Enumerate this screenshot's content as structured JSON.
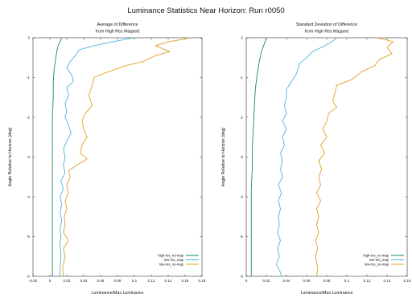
{
  "title": "Luminance Statistics Near Horizon: Run r0050",
  "colors": {
    "high-res_no-map": "#1a8a6a",
    "low-res_map": "#4fb3d9",
    "low-res_no-map": "#e0a020"
  },
  "chart_data": [
    {
      "type": "line",
      "title_lines": [
        "Average of Difference",
        "from High Res Mapped"
      ],
      "xlabel": "Luminance/Max Luminance",
      "ylabel": "Angle Relative to Horizon (deg)",
      "xlim": [
        -0.02,
        0.18
      ],
      "ylim": [
        -6,
        0
      ],
      "xticks": [
        -0.02,
        0,
        0.02,
        0.04,
        0.06,
        0.08,
        0.1,
        0.12,
        0.14,
        0.16,
        0.18
      ],
      "xtick_labels": [
        "-0.02",
        "0",
        "0.02",
        "0.04",
        "0.06",
        "0.08",
        "0.1",
        "0.12",
        "0.14",
        "0.16",
        "0.18"
      ],
      "yticks": [
        0,
        -1,
        -2,
        -3,
        -4,
        -5,
        -6
      ],
      "ytick_labels": [
        "0",
        "-1",
        "-2",
        "-3",
        "-4",
        "-5",
        "-6"
      ],
      "legend": "bottom-right",
      "series": [
        {
          "name": "high-res_no-map",
          "color": "#1a8a6a",
          "points": [
            [
              0.014,
              0
            ],
            [
              0.012,
              -0.1
            ],
            [
              0.009,
              -0.25
            ],
            [
              0.007,
              -0.5
            ],
            [
              0.005,
              -0.8
            ],
            [
              0.004,
              -1.1
            ],
            [
              0.004,
              -1.5
            ],
            [
              0.003,
              -2.0
            ],
            [
              0.003,
              -2.5
            ],
            [
              0.003,
              -3.0
            ],
            [
              0.003,
              -3.5
            ],
            [
              0.003,
              -4.0
            ],
            [
              0.003,
              -4.5
            ],
            [
              0.003,
              -5.0
            ],
            [
              0.003,
              -5.5
            ],
            [
              0.003,
              -6.0
            ]
          ]
        },
        {
          "name": "low-res_map",
          "color": "#4fb3d9",
          "points": [
            [
              0.099,
              0
            ],
            [
              0.075,
              -0.1
            ],
            [
              0.052,
              -0.2
            ],
            [
              0.035,
              -0.3
            ],
            [
              0.03,
              -0.45
            ],
            [
              0.024,
              -0.6
            ],
            [
              0.02,
              -0.75
            ],
            [
              0.026,
              -0.95
            ],
            [
              0.028,
              -1.1
            ],
            [
              0.02,
              -1.25
            ],
            [
              0.022,
              -1.45
            ],
            [
              0.018,
              -1.65
            ],
            [
              0.02,
              -1.85
            ],
            [
              0.018,
              -2.0
            ],
            [
              0.022,
              -2.2
            ],
            [
              0.025,
              -2.4
            ],
            [
              0.02,
              -2.6
            ],
            [
              0.016,
              -2.8
            ],
            [
              0.018,
              -3.0
            ],
            [
              0.016,
              -3.2
            ],
            [
              0.018,
              -3.4
            ],
            [
              0.013,
              -3.6
            ],
            [
              0.016,
              -3.8
            ],
            [
              0.012,
              -4.0
            ],
            [
              0.014,
              -4.2
            ],
            [
              0.012,
              -4.4
            ],
            [
              0.014,
              -4.6
            ],
            [
              0.012,
              -4.8
            ],
            [
              0.013,
              -5.0
            ],
            [
              0.012,
              -5.2
            ],
            [
              0.013,
              -5.5
            ],
            [
              0.012,
              -5.8
            ],
            [
              0.012,
              -6.0
            ]
          ]
        },
        {
          "name": "low-res_no-map",
          "color": "#e0a020",
          "points": [
            [
              0.165,
              0
            ],
            [
              0.155,
              -0.05
            ],
            [
              0.14,
              -0.1
            ],
            [
              0.125,
              -0.2
            ],
            [
              0.142,
              -0.35
            ],
            [
              0.125,
              -0.45
            ],
            [
              0.11,
              -0.6
            ],
            [
              0.09,
              -0.7
            ],
            [
              0.07,
              -0.85
            ],
            [
              0.052,
              -1.0
            ],
            [
              0.05,
              -1.2
            ],
            [
              0.046,
              -1.45
            ],
            [
              0.05,
              -1.7
            ],
            [
              0.042,
              -1.9
            ],
            [
              0.038,
              -2.1
            ],
            [
              0.04,
              -2.3
            ],
            [
              0.044,
              -2.5
            ],
            [
              0.038,
              -2.7
            ],
            [
              0.036,
              -2.9
            ],
            [
              0.044,
              -3.05
            ],
            [
              0.032,
              -3.2
            ],
            [
              0.022,
              -3.35
            ],
            [
              0.024,
              -3.5
            ],
            [
              0.02,
              -3.7
            ],
            [
              0.022,
              -3.9
            ],
            [
              0.018,
              -4.1
            ],
            [
              0.02,
              -4.3
            ],
            [
              0.017,
              -4.5
            ],
            [
              0.018,
              -4.7
            ],
            [
              0.016,
              -4.9
            ],
            [
              0.022,
              -5.1
            ],
            [
              0.016,
              -5.3
            ],
            [
              0.018,
              -5.5
            ],
            [
              0.015,
              -5.8
            ],
            [
              0.016,
              -6.0
            ]
          ]
        }
      ]
    },
    {
      "type": "line",
      "title_lines": [
        "Standard Deviation of Difference",
        "from High Res Mapped"
      ],
      "xlabel": "Luminance/Max Luminance",
      "ylabel": "Angle Relative to Horizon (deg)",
      "xlim": [
        0,
        0.16
      ],
      "ylim": [
        -6,
        0
      ],
      "xticks": [
        0,
        0.02,
        0.04,
        0.06,
        0.08,
        0.1,
        0.12,
        0.14,
        0.16
      ],
      "xtick_labels": [
        "0",
        "0.02",
        "0.04",
        "0.06",
        "0.08",
        "0.1",
        "0.12",
        "0.14",
        "0.16"
      ],
      "yticks": [
        0,
        -1,
        -2,
        -3,
        -4,
        -5,
        -6
      ],
      "ytick_labels": [
        "0",
        "-1",
        "-2",
        "-3",
        "-4",
        "-5",
        "-6"
      ],
      "legend": "bottom-right",
      "series": [
        {
          "name": "high-res_no-map",
          "color": "#1a8a6a",
          "points": [
            [
              0.02,
              0
            ],
            [
              0.018,
              -0.15
            ],
            [
              0.015,
              -0.35
            ],
            [
              0.013,
              -0.6
            ],
            [
              0.011,
              -0.9
            ],
            [
              0.009,
              -1.3
            ],
            [
              0.008,
              -1.8
            ],
            [
              0.007,
              -2.3
            ],
            [
              0.006,
              -2.8
            ],
            [
              0.006,
              -3.3
            ],
            [
              0.005,
              -3.8
            ],
            [
              0.005,
              -4.3
            ],
            [
              0.005,
              -4.8
            ],
            [
              0.005,
              -5.3
            ],
            [
              0.005,
              -5.8
            ],
            [
              0.005,
              -6.0
            ]
          ]
        },
        {
          "name": "low-res_map",
          "color": "#4fb3d9",
          "points": [
            [
              0.09,
              0
            ],
            [
              0.085,
              -0.1
            ],
            [
              0.078,
              -0.2
            ],
            [
              0.066,
              -0.35
            ],
            [
              0.06,
              -0.5
            ],
            [
              0.053,
              -0.65
            ],
            [
              0.05,
              -0.9
            ],
            [
              0.045,
              -1.1
            ],
            [
              0.04,
              -1.3
            ],
            [
              0.04,
              -1.5
            ],
            [
              0.038,
              -1.7
            ],
            [
              0.04,
              -1.9
            ],
            [
              0.036,
              -2.1
            ],
            [
              0.04,
              -2.3
            ],
            [
              0.036,
              -2.5
            ],
            [
              0.038,
              -2.7
            ],
            [
              0.034,
              -2.9
            ],
            [
              0.036,
              -3.1
            ],
            [
              0.034,
              -3.3
            ],
            [
              0.036,
              -3.5
            ],
            [
              0.032,
              -3.7
            ],
            [
              0.035,
              -3.9
            ],
            [
              0.032,
              -4.1
            ],
            [
              0.034,
              -4.3
            ],
            [
              0.032,
              -4.5
            ],
            [
              0.033,
              -4.7
            ],
            [
              0.031,
              -4.9
            ],
            [
              0.034,
              -5.1
            ],
            [
              0.031,
              -5.3
            ],
            [
              0.033,
              -5.5
            ],
            [
              0.03,
              -5.7
            ],
            [
              0.034,
              -5.9
            ],
            [
              0.035,
              -6.0
            ]
          ]
        },
        {
          "name": "low-res_no-map",
          "color": "#e0a020",
          "points": [
            [
              0.13,
              0
            ],
            [
              0.146,
              -0.1
            ],
            [
              0.14,
              -0.25
            ],
            [
              0.145,
              -0.4
            ],
            [
              0.132,
              -0.55
            ],
            [
              0.128,
              -0.7
            ],
            [
              0.115,
              -0.85
            ],
            [
              0.105,
              -1.05
            ],
            [
              0.09,
              -1.2
            ],
            [
              0.088,
              -1.4
            ],
            [
              0.086,
              -1.6
            ],
            [
              0.09,
              -1.75
            ],
            [
              0.082,
              -1.9
            ],
            [
              0.08,
              -2.1
            ],
            [
              0.076,
              -2.3
            ],
            [
              0.08,
              -2.5
            ],
            [
              0.074,
              -2.7
            ],
            [
              0.078,
              -2.9
            ],
            [
              0.072,
              -3.1
            ],
            [
              0.075,
              -3.3
            ],
            [
              0.072,
              -3.5
            ],
            [
              0.074,
              -3.7
            ],
            [
              0.07,
              -3.9
            ],
            [
              0.074,
              -4.1
            ],
            [
              0.07,
              -4.3
            ],
            [
              0.072,
              -4.5
            ],
            [
              0.07,
              -4.7
            ],
            [
              0.072,
              -4.9
            ],
            [
              0.069,
              -5.1
            ],
            [
              0.071,
              -5.3
            ],
            [
              0.069,
              -5.5
            ],
            [
              0.071,
              -5.8
            ],
            [
              0.07,
              -6.0
            ]
          ]
        }
      ]
    }
  ]
}
